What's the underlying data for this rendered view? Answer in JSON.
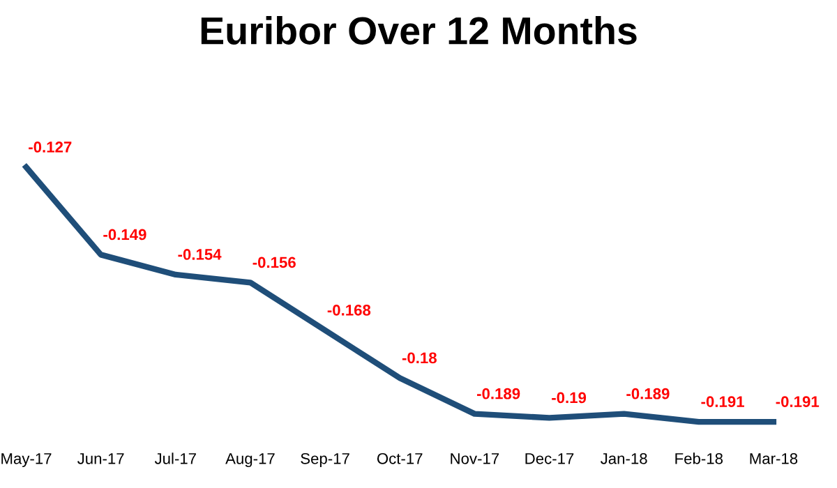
{
  "chart_data": {
    "type": "line",
    "title": "Euribor Over 12 Months",
    "categories": [
      "May-17",
      "Jun-17",
      "Jul-17",
      "Aug-17",
      "Sep-17",
      "Oct-17",
      "Nov-17",
      "Dec-17",
      "Jan-18",
      "Feb-18",
      "Mar-18"
    ],
    "series": [
      {
        "color": "#1f4e79",
        "values": [
          -0.127,
          -0.149,
          -0.154,
          -0.156,
          -0.168,
          -0.18,
          -0.189,
          -0.19,
          -0.189,
          -0.191,
          -0.191
        ]
      }
    ],
    "data_labels": true,
    "grid": false,
    "legend": false,
    "marker": "none",
    "line_style": "solid"
  }
}
